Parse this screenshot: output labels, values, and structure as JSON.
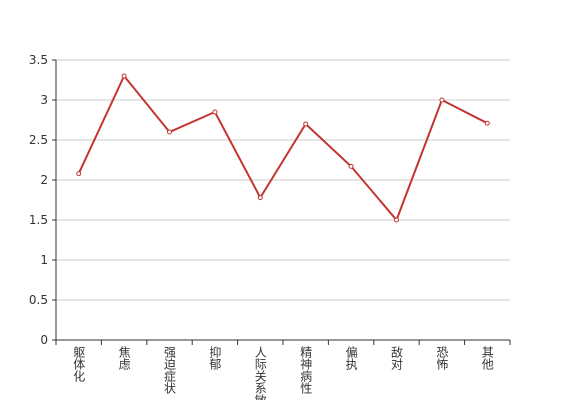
{
  "chart_data": {
    "type": "line",
    "categories": [
      "躯体化",
      "焦虑",
      "强迫症状",
      "抑郁",
      "人际关系敏感",
      "精神病性",
      "偏执",
      "敌对",
      "恐怖",
      "其他"
    ],
    "series": [
      {
        "color": "#c23531",
        "values": [
          2.08,
          3.3,
          2.6,
          2.85,
          1.78,
          2.7,
          2.17,
          1.5,
          3.0,
          2.71
        ]
      }
    ],
    "ylim": [
      0,
      3.5
    ],
    "yticks": [
      0,
      0.5,
      1,
      1.5,
      2,
      2.5,
      3,
      3.5
    ],
    "grid": true
  }
}
